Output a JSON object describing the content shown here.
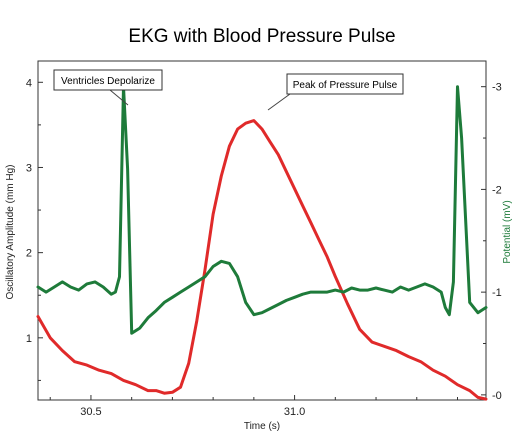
{
  "chart_data": {
    "type": "line",
    "title": "EKG with Blood Pressure Pulse",
    "xlabel": "Time (s)",
    "ylabel": "Oscillatory Amplitude (mm Hg)",
    "y2label": "Potential (mV)",
    "xlim": [
      30.37,
      31.47
    ],
    "ylim": [
      0.27,
      4.25
    ],
    "y2lim": [
      -0.05,
      3.25
    ],
    "x_ticks": [
      30.5,
      31.0
    ],
    "x_tick_labels": [
      "30.5",
      "31.0"
    ],
    "y_ticks": [
      1,
      2,
      3,
      4
    ],
    "y_tick_labels": [
      "1",
      "2",
      "3",
      "4"
    ],
    "y2_ticks": [
      0,
      1,
      2,
      3
    ],
    "y2_tick_labels": [
      "0",
      "1",
      "2",
      "3"
    ],
    "grid": false,
    "series": [
      {
        "axis": "left",
        "color": "#e02a2a",
        "x": [
          30.37,
          30.4,
          30.43,
          30.46,
          30.49,
          30.52,
          30.55,
          30.58,
          30.61,
          30.64,
          30.66,
          30.68,
          30.7,
          30.72,
          30.74,
          30.76,
          30.78,
          30.8,
          30.82,
          30.84,
          30.86,
          30.88,
          30.9,
          30.92,
          30.94,
          30.96,
          30.98,
          31.0,
          31.02,
          31.04,
          31.06,
          31.08,
          31.1,
          31.13,
          31.16,
          31.19,
          31.22,
          31.25,
          31.28,
          31.31,
          31.34,
          31.37,
          31.4,
          31.43,
          31.45,
          31.47
        ],
        "values": [
          1.25,
          1.0,
          0.85,
          0.72,
          0.68,
          0.62,
          0.58,
          0.5,
          0.45,
          0.38,
          0.38,
          0.35,
          0.36,
          0.42,
          0.7,
          1.2,
          1.8,
          2.45,
          2.9,
          3.25,
          3.45,
          3.52,
          3.55,
          3.45,
          3.3,
          3.15,
          2.95,
          2.75,
          2.55,
          2.35,
          2.15,
          1.95,
          1.72,
          1.4,
          1.1,
          0.95,
          0.9,
          0.85,
          0.78,
          0.72,
          0.62,
          0.55,
          0.45,
          0.38,
          0.3,
          0.28
        ]
      },
      {
        "axis": "right",
        "color": "#1e7b3a",
        "x": [
          30.37,
          30.39,
          30.41,
          30.43,
          30.45,
          30.47,
          30.49,
          30.51,
          30.53,
          30.55,
          30.56,
          30.57,
          30.58,
          30.59,
          30.6,
          30.62,
          30.64,
          30.66,
          30.68,
          30.7,
          30.72,
          30.74,
          30.76,
          30.78,
          30.8,
          30.82,
          30.84,
          30.86,
          30.88,
          30.9,
          30.92,
          30.94,
          30.96,
          30.98,
          31.0,
          31.02,
          31.04,
          31.06,
          31.08,
          31.1,
          31.12,
          31.14,
          31.16,
          31.18,
          31.2,
          31.22,
          31.24,
          31.26,
          31.28,
          31.3,
          31.32,
          31.34,
          31.36,
          31.37,
          31.38,
          31.39,
          31.4,
          31.41,
          31.43,
          31.45,
          31.47
        ],
        "values": [
          1.05,
          1.0,
          1.05,
          1.1,
          1.05,
          1.02,
          1.08,
          1.1,
          1.05,
          0.98,
          1.0,
          1.15,
          3.0,
          2.2,
          0.6,
          0.65,
          0.75,
          0.82,
          0.9,
          0.95,
          1.0,
          1.05,
          1.1,
          1.15,
          1.25,
          1.3,
          1.28,
          1.15,
          0.9,
          0.78,
          0.8,
          0.84,
          0.88,
          0.92,
          0.95,
          0.98,
          1.0,
          1.0,
          1.0,
          1.02,
          1.0,
          1.04,
          1.02,
          1.02,
          1.04,
          1.02,
          1.0,
          1.05,
          1.02,
          1.05,
          1.08,
          1.05,
          1.0,
          0.85,
          0.78,
          1.1,
          3.0,
          2.5,
          0.9,
          0.8,
          0.85
        ]
      }
    ],
    "annotations": [
      {
        "text": "Ventricles Depolarize",
        "x": 30.59,
        "y2": 3.0
      },
      {
        "text": "Peak of Pressure Pulse",
        "x": 30.92,
        "y": 3.55
      }
    ]
  }
}
